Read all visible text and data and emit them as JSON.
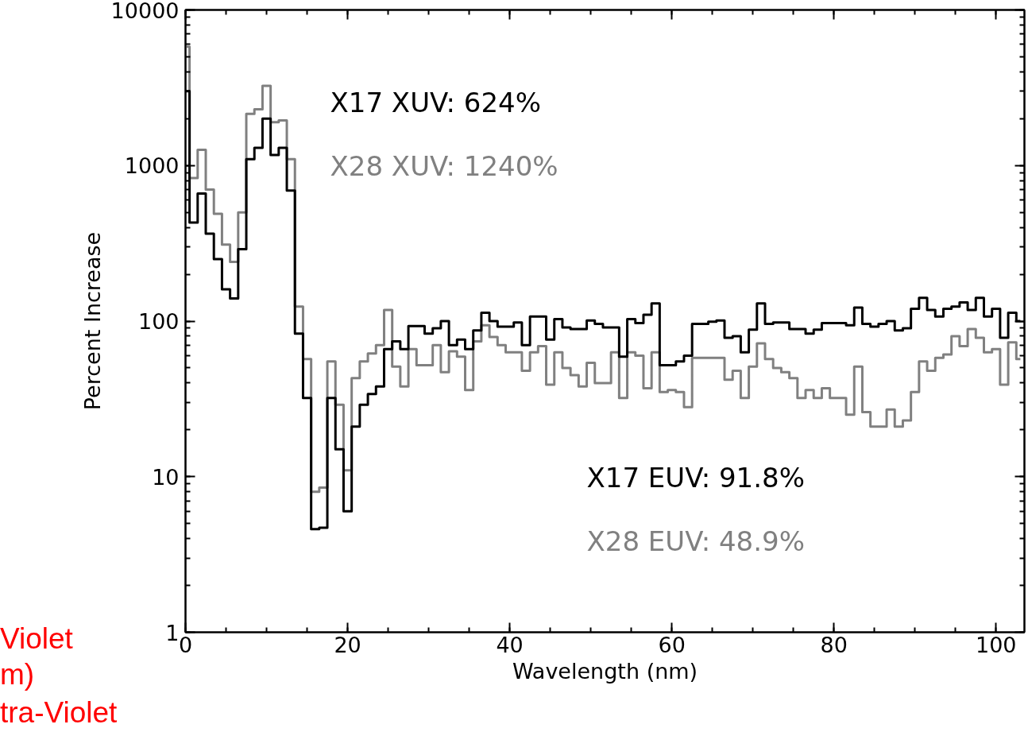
{
  "chart_data": {
    "type": "step",
    "xlabel": "Wavelength (nm)",
    "ylabel": "Percent Increase",
    "log": "y",
    "grid": false,
    "xlim": [
      0,
      103.5
    ],
    "xticks": [
      0,
      20,
      40,
      60,
      80,
      100
    ],
    "ylim": [
      1,
      10000
    ],
    "yticks": [
      1,
      10,
      100,
      1000,
      10000
    ],
    "x": [
      0,
      1,
      2,
      3,
      4,
      5,
      6,
      7,
      8,
      9,
      10,
      11,
      12,
      13,
      14,
      15,
      16,
      17,
      18,
      19,
      20,
      21,
      22,
      23,
      24,
      25,
      26,
      27,
      28,
      29,
      30,
      31,
      32,
      33,
      34,
      35,
      36,
      37,
      38,
      39,
      40,
      41,
      42,
      43,
      44,
      45,
      46,
      47,
      48,
      49,
      50,
      51,
      52,
      53,
      54,
      55,
      56,
      57,
      58,
      59,
      60,
      61,
      62,
      63,
      64,
      65,
      66,
      67,
      68,
      69,
      70,
      71,
      72,
      73,
      74,
      75,
      76,
      77,
      78,
      79,
      80,
      81,
      82,
      83,
      84,
      85,
      86,
      87,
      88,
      89,
      90,
      91,
      92,
      93,
      94,
      95,
      96,
      97,
      98,
      99,
      100,
      101,
      102,
      103
    ],
    "series": [
      {
        "color": "#808080",
        "values": [
          5800,
          830,
          1260,
          700,
          490,
          310,
          240,
          500,
          2150,
          2300,
          3250,
          1900,
          1950,
          1100,
          124,
          57,
          8,
          8.5,
          55,
          29,
          11,
          43,
          55,
          62,
          70,
          118,
          51,
          38,
          66,
          52,
          52,
          70,
          47,
          64,
          59,
          36,
          74,
          94,
          79,
          70,
          63,
          63,
          48,
          63,
          69,
          39,
          63,
          50,
          45,
          38,
          54,
          40,
          40,
          63,
          32,
          63,
          60,
          37,
          63,
          35,
          36,
          35,
          28,
          58,
          58,
          58,
          58,
          42,
          48,
          32,
          51,
          72,
          57,
          50,
          47,
          43,
          32,
          36,
          32,
          37,
          32,
          32,
          25,
          51,
          26,
          21,
          21,
          27,
          21,
          23,
          35,
          55,
          48,
          58,
          61,
          80,
          69,
          89,
          78,
          63,
          66,
          39,
          73,
          57
        ]
      },
      {
        "color": "#000000",
        "values": [
          3000,
          430,
          660,
          365,
          250,
          160,
          140,
          290,
          1100,
          1300,
          2000,
          1170,
          1300,
          690,
          83,
          32,
          4.6,
          4.7,
          32,
          15,
          6,
          21,
          29,
          34,
          38,
          66,
          74,
          66,
          93,
          93,
          83,
          90,
          100,
          70,
          76,
          66,
          87,
          113,
          100,
          92,
          92,
          98,
          70,
          107,
          107,
          76,
          103,
          91,
          89,
          89,
          101,
          96,
          91,
          91,
          59,
          103,
          97,
          110,
          130,
          52,
          52,
          55,
          60,
          96,
          96,
          99,
          101,
          78,
          80,
          63,
          88,
          130,
          96,
          98,
          98,
          89,
          89,
          83,
          88,
          97,
          97,
          97,
          94,
          122,
          96,
          92,
          96,
          100,
          87,
          90,
          120,
          141,
          118,
          107,
          120,
          124,
          132,
          118,
          141,
          107,
          120,
          78,
          113,
          100
        ]
      }
    ],
    "annotations": [
      "X17  XUV:  624%",
      "X28  XUV:  1240%",
      "X17  EUV:  91.8%",
      "X28  EUV:  48.9%",
      "Violet",
      "m)",
      "tra-Violet"
    ]
  }
}
